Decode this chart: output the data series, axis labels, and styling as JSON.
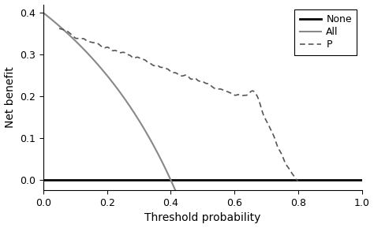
{
  "title": "",
  "xlabel": "Threshold probability",
  "ylabel": "Net benefit",
  "xlim": [
    0.0,
    1.0
  ],
  "ylim": [
    -0.025,
    0.42
  ],
  "yticks": [
    0.0,
    0.1,
    0.2,
    0.3,
    0.4
  ],
  "xticks": [
    0.0,
    0.2,
    0.4,
    0.6,
    0.8,
    1.0
  ],
  "none_color": "#000000",
  "all_color": "#888888",
  "p_color": "#555555",
  "background_color": "#ffffff",
  "legend_labels": [
    "None",
    "All",
    "P"
  ],
  "prevalence": 0.4,
  "figsize": [
    4.74,
    2.89
  ],
  "dpi": 100
}
